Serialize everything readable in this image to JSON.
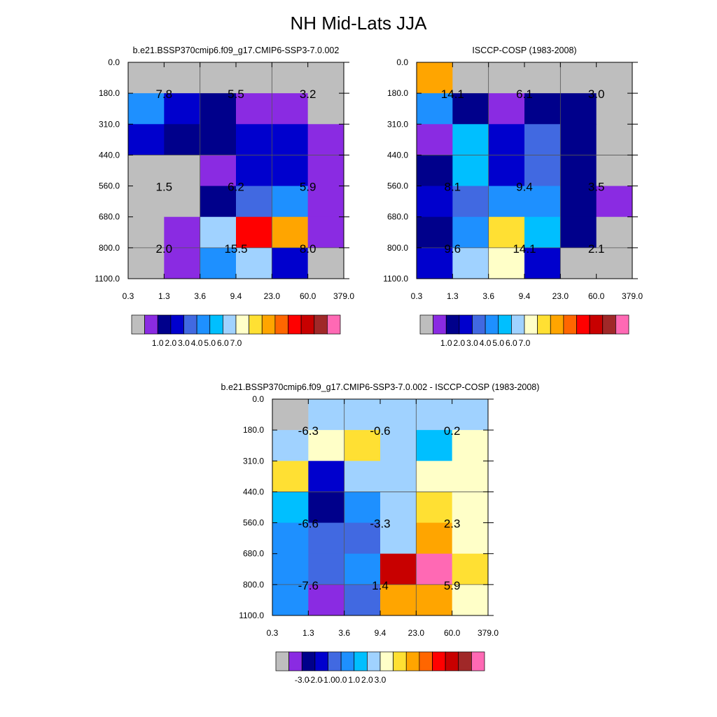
{
  "figure": {
    "title": "NH Mid-Lats JJA"
  },
  "chart_data": [
    {
      "type": "heatmap",
      "title": "b.e21.BSSP370cmip6.f09_g17.CMIP6-SSP3-7.0.002",
      "x_ticks": [
        "0.3",
        "1.3",
        "3.6",
        "9.4",
        "23.0",
        "60.0",
        "379.0"
      ],
      "y_ticks": [
        "0.0",
        "180.0",
        "310.0",
        "440.0",
        "560.0",
        "680.0",
        "800.0",
        "1100.0"
      ],
      "cells": [
        [
          0,
          0,
          0,
          0,
          0,
          0
        ],
        [
          5,
          3,
          2,
          1,
          1,
          0
        ],
        [
          3,
          2,
          2,
          3,
          3,
          1
        ],
        [
          0,
          0,
          1,
          3,
          3,
          1
        ],
        [
          0,
          0,
          2,
          4,
          5,
          1
        ],
        [
          0,
          1,
          7,
          12,
          10,
          1
        ],
        [
          0,
          1,
          5,
          7,
          3,
          0
        ]
      ],
      "labels": [
        {
          "x": "1.3",
          "y": "180.0",
          "text": "7.8"
        },
        {
          "x": "9.4",
          "y": "180.0",
          "text": "5.5"
        },
        {
          "x": "60.0",
          "y": "180.0",
          "text": "3.2"
        },
        {
          "x": "1.3",
          "y": "560.0",
          "text": "1.5"
        },
        {
          "x": "9.4",
          "y": "560.0",
          "text": "6.2"
        },
        {
          "x": "60.0",
          "y": "560.0",
          "text": "5.9"
        },
        {
          "x": "1.3",
          "y": "800.0",
          "text": "2.0"
        },
        {
          "x": "9.4",
          "y": "800.0",
          "text": "15.5"
        },
        {
          "x": "60.0",
          "y": "800.0",
          "text": "8.0"
        }
      ],
      "colorbar": {
        "colors": [
          "#bebebe",
          "#8a2be2",
          "#00008b",
          "#0000cd",
          "#4169e1",
          "#1e90ff",
          "#00bfff",
          "#a0d2ff",
          "#ffffc8",
          "#ffe033",
          "#ffa500",
          "#ff6600",
          "#ff0000",
          "#c80000",
          "#a02828",
          "#ff69b4"
        ],
        "labels": [
          "1.0",
          "2.0",
          "3.0",
          "4.0",
          "5.0",
          "6.0",
          "7.0"
        ]
      }
    },
    {
      "type": "heatmap",
      "title": "ISCCP-COSP (1983-2008)",
      "x_ticks": [
        "0.3",
        "1.3",
        "3.6",
        "9.4",
        "23.0",
        "60.0",
        "379.0"
      ],
      "y_ticks": [
        "0.0",
        "180.0",
        "310.0",
        "440.0",
        "560.0",
        "680.0",
        "800.0",
        "1100.0"
      ],
      "cells": [
        [
          10,
          0,
          0,
          0,
          0,
          0
        ],
        [
          5,
          2,
          1,
          2,
          2,
          0
        ],
        [
          1,
          6,
          3,
          4,
          2,
          0
        ],
        [
          2,
          6,
          3,
          4,
          2,
          0
        ],
        [
          3,
          4,
          5,
          5,
          2,
          1
        ],
        [
          2,
          5,
          9,
          6,
          2,
          0
        ],
        [
          3,
          7,
          8,
          3,
          0,
          0
        ]
      ],
      "labels": [
        {
          "x": "1.3",
          "y": "180.0",
          "text": "14.1"
        },
        {
          "x": "9.4",
          "y": "180.0",
          "text": "6.1"
        },
        {
          "x": "60.0",
          "y": "180.0",
          "text": "3.0"
        },
        {
          "x": "1.3",
          "y": "560.0",
          "text": "8.1"
        },
        {
          "x": "9.4",
          "y": "560.0",
          "text": "9.4"
        },
        {
          "x": "60.0",
          "y": "560.0",
          "text": "3.5"
        },
        {
          "x": "1.3",
          "y": "800.0",
          "text": "9.6"
        },
        {
          "x": "9.4",
          "y": "800.0",
          "text": "14.1"
        },
        {
          "x": "60.0",
          "y": "800.0",
          "text": "2.1"
        }
      ],
      "colorbar": {
        "colors": [
          "#bebebe",
          "#8a2be2",
          "#00008b",
          "#0000cd",
          "#4169e1",
          "#1e90ff",
          "#00bfff",
          "#a0d2ff",
          "#ffffc8",
          "#ffe033",
          "#ffa500",
          "#ff6600",
          "#ff0000",
          "#c80000",
          "#a02828",
          "#ff69b4"
        ],
        "labels": [
          "1.0",
          "2.0",
          "3.0",
          "4.0",
          "5.0",
          "6.0",
          "7.0"
        ]
      }
    },
    {
      "type": "heatmap",
      "title": "b.e21.BSSP370cmip6.f09_g17.CMIP6-SSP3-7.0.002 - ISCCP-COSP (1983-2008)",
      "x_ticks": [
        "0.3",
        "1.3",
        "3.6",
        "9.4",
        "23.0",
        "60.0",
        "379.0"
      ],
      "y_ticks": [
        "0.0",
        "180.0",
        "310.0",
        "440.0",
        "560.0",
        "680.0",
        "800.0",
        "1100.0"
      ],
      "cells": [
        [
          0,
          7,
          7,
          7,
          7,
          7
        ],
        [
          7,
          8,
          9,
          7,
          6,
          8
        ],
        [
          9,
          3,
          7,
          7,
          8,
          8
        ],
        [
          6,
          2,
          5,
          7,
          9,
          8
        ],
        [
          5,
          4,
          4,
          7,
          10,
          8
        ],
        [
          5,
          4,
          5,
          13,
          15,
          9
        ],
        [
          5,
          1,
          4,
          10,
          10,
          8
        ]
      ],
      "labels": [
        {
          "x": "1.3",
          "y": "180.0",
          "text": "-6.3"
        },
        {
          "x": "9.4",
          "y": "180.0",
          "text": "-0.6"
        },
        {
          "x": "60.0",
          "y": "180.0",
          "text": "0.2"
        },
        {
          "x": "1.3",
          "y": "560.0",
          "text": "-6.6"
        },
        {
          "x": "9.4",
          "y": "560.0",
          "text": "-3.3"
        },
        {
          "x": "60.0",
          "y": "560.0",
          "text": "2.3"
        },
        {
          "x": "1.3",
          "y": "800.0",
          "text": "-7.6"
        },
        {
          "x": "9.4",
          "y": "800.0",
          "text": "1.4"
        },
        {
          "x": "60.0",
          "y": "800.0",
          "text": "5.9"
        }
      ],
      "colorbar": {
        "colors": [
          "#bebebe",
          "#8a2be2",
          "#00008b",
          "#0000cd",
          "#4169e1",
          "#1e90ff",
          "#00bfff",
          "#a0d2ff",
          "#ffffc8",
          "#ffe033",
          "#ffa500",
          "#ff6600",
          "#ff0000",
          "#c80000",
          "#a02828",
          "#ff69b4"
        ],
        "labels": [
          "-3.0",
          "-2.0",
          "-1.0",
          "0.0",
          "1.0",
          "2.0",
          "3.0"
        ]
      }
    }
  ]
}
